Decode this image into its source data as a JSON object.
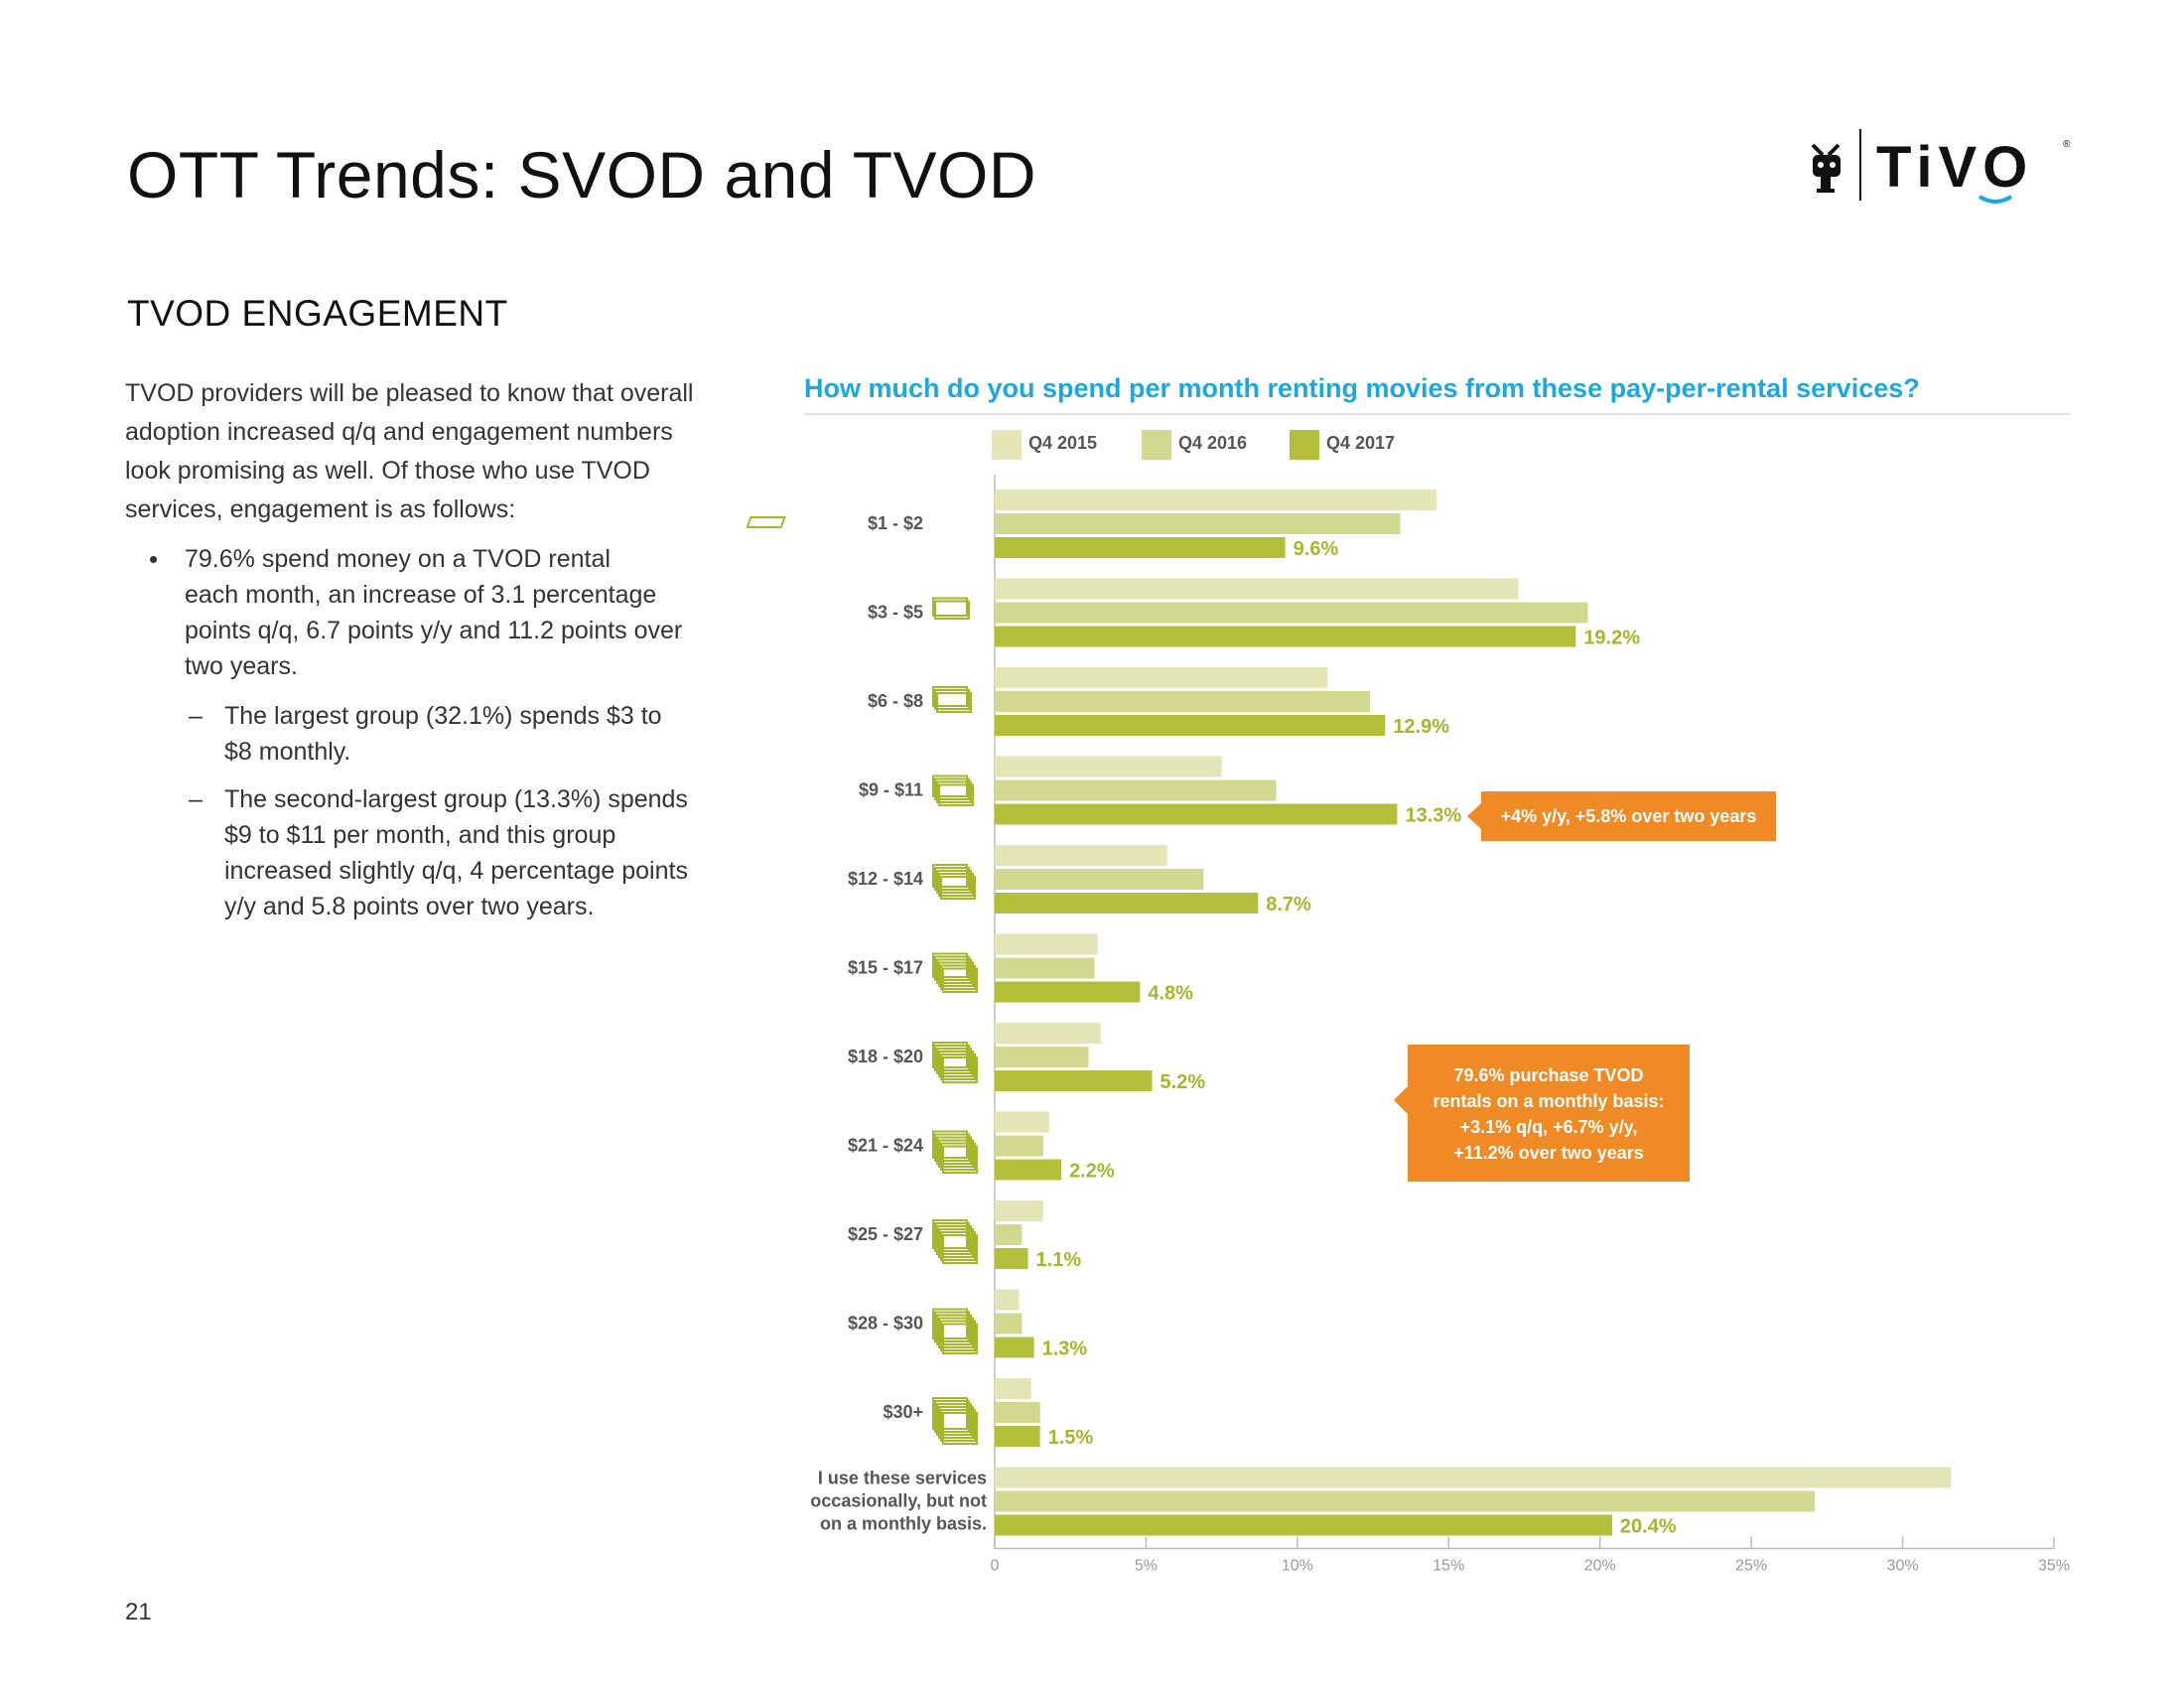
{
  "page": {
    "title": "OTT Trends: SVOD and TVOD",
    "section": "TVOD ENGAGEMENT",
    "page_number": "21",
    "logo_text": "TiVO",
    "intro": [
      "TVOD providers will be pleased to know that overall",
      "adoption increased q/q and engagement numbers",
      "look promising as well. Of those who use TVOD",
      "services, engagement is as follows:"
    ],
    "bullet": [
      "79.6% spend money on a TVOD rental",
      "each month, an increase of 3.1 percentage",
      "points q/q, 6.7 points y/y and 11.2 points over",
      "two years."
    ],
    "sub1": [
      "The largest group (32.1%) spends $3 to",
      "$8 monthly."
    ],
    "sub2": [
      "The second-largest group (13.3%) spends",
      "$9 to $11 per month, and this group",
      "increased slightly q/q, 4 percentage points",
      "y/y and 5.8 points over two years."
    ],
    "dash": "–"
  },
  "chart_data": {
    "type": "bar",
    "orientation": "horizontal",
    "title": "How much do you spend per month renting movies from these pay-per-rental services?",
    "categories": [
      "$1 - $2",
      "$3 - $5",
      "$6 - $8",
      "$9 - $11",
      "$12 - $14",
      "$15 - $17",
      "$18 - $20",
      "$21 - $24",
      "$25 - $27",
      "$28 - $30",
      "$30+",
      "I use these services occasionally, but not on a monthly basis."
    ],
    "category_lines": [
      [
        "$1 - $2"
      ],
      [
        "$3 - $5"
      ],
      [
        "$6 - $8"
      ],
      [
        "$9 - $11"
      ],
      [
        "$12 - $14"
      ],
      [
        "$15 - $17"
      ],
      [
        "$18 - $20"
      ],
      [
        "$21 - $24"
      ],
      [
        "$25 - $27"
      ],
      [
        "$28 - $30"
      ],
      [
        "$30+"
      ],
      [
        "I use these services",
        "occasionally, but not",
        "on a monthly basis."
      ]
    ],
    "series": [
      {
        "name": "Q4 2015",
        "color": "#e3e5b7",
        "values": [
          14.6,
          17.3,
          11.0,
          7.5,
          5.7,
          3.4,
          3.5,
          1.8,
          1.6,
          0.8,
          1.2,
          31.6
        ]
      },
      {
        "name": "Q4 2016",
        "color": "#d2d88f",
        "values": [
          13.4,
          19.6,
          12.4,
          9.3,
          6.9,
          3.3,
          3.1,
          1.6,
          0.9,
          0.9,
          1.5,
          27.1
        ]
      },
      {
        "name": "Q4 2017",
        "color": "#b3bf3a",
        "values": [
          9.6,
          19.2,
          12.9,
          13.3,
          8.7,
          4.8,
          5.2,
          2.2,
          1.1,
          1.3,
          1.5,
          20.4
        ]
      }
    ],
    "data_labels": [
      "9.6%",
      "19.2%",
      "12.9%",
      "13.3%",
      "8.7%",
      "4.8%",
      "5.2%",
      "2.2%",
      "1.1%",
      "1.3%",
      "1.5%",
      "20.4%"
    ],
    "xlim": [
      0,
      35
    ],
    "xticks": [
      0,
      5,
      10,
      15,
      20,
      25,
      30,
      35
    ],
    "xtick_labels": [
      "0",
      "5%",
      "10%",
      "15%",
      "20%",
      "25%",
      "30%",
      "35%"
    ],
    "label_color": "#a5b62a",
    "legend_position": "top",
    "annotations": [
      {
        "category": "$9 - $11",
        "text": "+4% y/y, +5.8% over two years"
      },
      {
        "category": "$21 - $24",
        "text": "79.6% purchase TVOD rentals on a monthly basis: +3.1% q/q, +6.7% y/y, +11.2% over two years"
      }
    ]
  },
  "callouts": {
    "c1": "+4% y/y, +5.8% over two years",
    "c2_lines": [
      "79.6% purchase TVOD",
      "rentals on a monthly basis:",
      "+3.1% q/q, +6.7% y/y,",
      "+11.2% over two years"
    ]
  }
}
